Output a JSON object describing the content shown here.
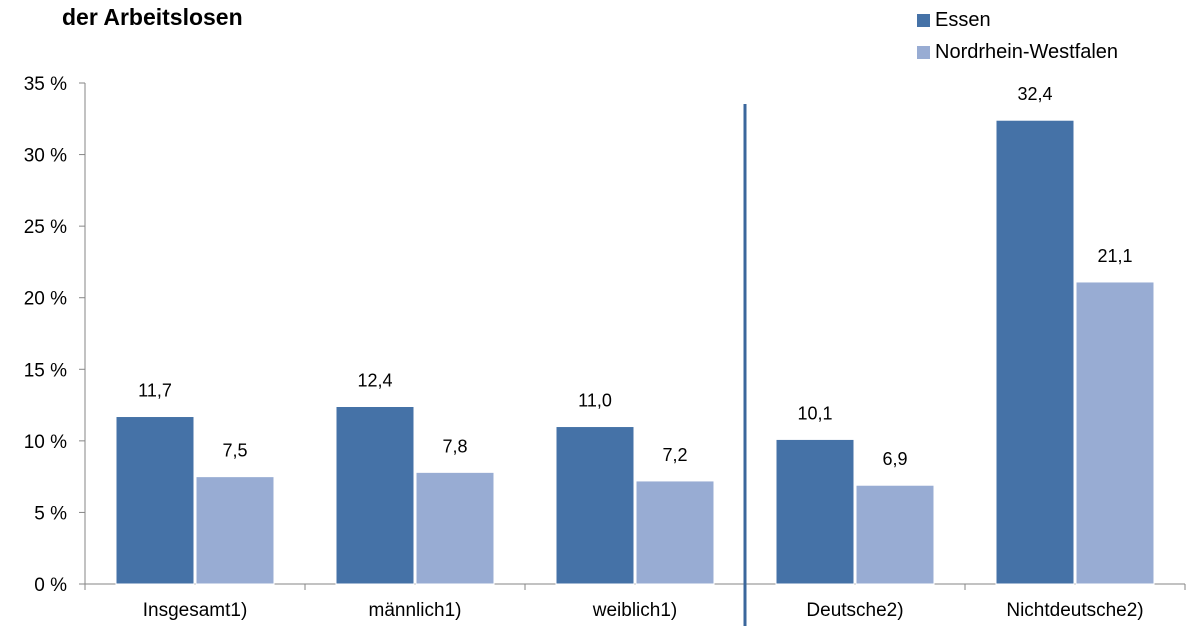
{
  "chart_data": {
    "type": "bar",
    "title": "der Arbeitslosen",
    "categories": [
      "Insgesamt1)",
      "männlich1)",
      "weiblich1)",
      "Deutsche2)",
      "Nichtdeutsche2)"
    ],
    "series": [
      {
        "name": "Essen",
        "values": [
          11.7,
          12.4,
          11.0,
          10.1,
          32.4
        ],
        "labels": [
          "11,7",
          "12,4",
          "11,0",
          "10,1",
          "32,4"
        ],
        "color": "#4572a7"
      },
      {
        "name": "Nordrhein-Westfalen",
        "values": [
          7.5,
          7.8,
          7.2,
          6.9,
          21.1
        ],
        "labels": [
          "7,5",
          "7,8",
          "7,2",
          "6,9",
          "21,1"
        ],
        "color": "#98acd3"
      }
    ],
    "yticks": [
      "0 %",
      "5 %",
      "10 %",
      "15 %",
      "20 %",
      "25 %",
      "30 %",
      "35 %"
    ],
    "ylim": [
      0,
      35
    ],
    "ytick_step": 5,
    "separator_after_category": 2,
    "separator_color": "#3b679c",
    "legend_position": "top-right",
    "grid": false
  }
}
